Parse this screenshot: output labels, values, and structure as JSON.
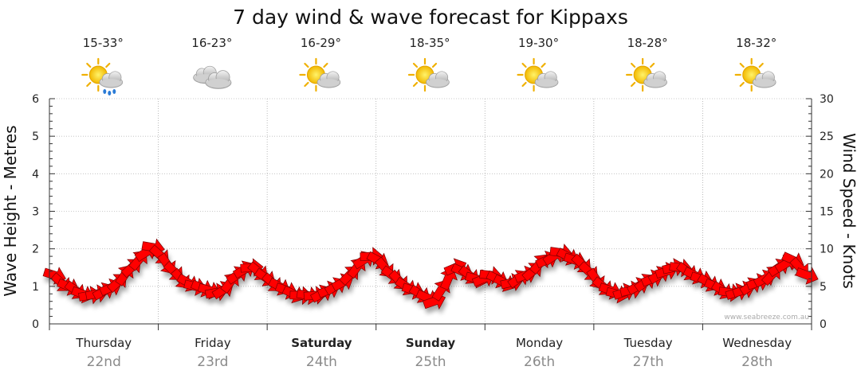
{
  "chart_data": {
    "type": "line",
    "title": "7 day wind & wave forecast for Kippaxs",
    "ylabel": "Wave Height - Metres",
    "y2label": "Wind Speed - Knots",
    "ylim": [
      0,
      6
    ],
    "y2lim": [
      0,
      30
    ],
    "yticks": [
      "0",
      "1",
      "2",
      "3",
      "4",
      "5",
      "6"
    ],
    "y2ticks": [
      "0",
      "5",
      "10",
      "15",
      "20",
      "25",
      "30"
    ],
    "grid": true,
    "credit": "www.seabreeze.com.au",
    "days": [
      {
        "name": "Thursday",
        "date": "22nd",
        "temp": "15-33°",
        "icon": "sun-cloud-rain-icon",
        "bold": false
      },
      {
        "name": "Friday",
        "date": "23rd",
        "temp": "16-23°",
        "icon": "cloud-icon",
        "bold": false
      },
      {
        "name": "Saturday",
        "date": "24th",
        "temp": "16-29°",
        "icon": "sun-cloud-icon",
        "bold": true
      },
      {
        "name": "Sunday",
        "date": "25th",
        "temp": "18-35°",
        "icon": "sun-cloud-icon",
        "bold": true
      },
      {
        "name": "Monday",
        "date": "26th",
        "temp": "19-30°",
        "icon": "sun-cloud-icon",
        "bold": false
      },
      {
        "name": "Tuesday",
        "date": "27th",
        "temp": "18-28°",
        "icon": "sun-cloud-icon",
        "bold": false
      },
      {
        "name": "Wednesday",
        "date": "28th",
        "temp": "18-32°",
        "icon": "sun-cloud-icon",
        "bold": false
      }
    ],
    "series": [
      {
        "type": "wind-arrows",
        "color": "#ff0000",
        "values_knots": [
          6.5,
          5.5,
          5,
          4.5,
          4,
          3.8,
          4,
          4.3,
          4.8,
          5.5,
          6.5,
          7.5,
          8.5,
          9.5,
          10.2,
          9.2,
          8,
          7,
          6,
          5.5,
          5,
          4.8,
          4.5,
          4.2,
          4.5,
          5.5,
          6.5,
          7.2,
          7.5,
          7,
          6.2,
          5.5,
          5,
          4.5,
          4,
          3.8,
          3.8,
          3.8,
          4,
          4.5,
          5,
          5.5,
          6.5,
          7.5,
          8.5,
          9,
          8.5,
          7.5,
          6.5,
          5.8,
          5,
          4.5,
          4,
          3.5,
          3,
          4.5,
          6,
          7.5,
          7,
          6.5,
          6,
          6,
          6.5,
          6,
          5.5,
          5.5,
          6,
          6.5,
          7,
          8,
          8.5,
          9,
          9.5,
          9,
          8.5,
          8,
          7,
          6,
          5,
          4.5,
          4,
          4.2,
          4.5,
          5,
          5.5,
          6,
          6.5,
          7,
          7.5,
          7.5,
          7,
          6.5,
          6,
          5.5,
          5,
          4.5,
          4.2,
          4.2,
          4.5,
          5,
          5.5,
          6,
          6.5,
          7.5,
          8,
          8.5,
          7.5,
          6.5
        ]
      }
    ]
  }
}
